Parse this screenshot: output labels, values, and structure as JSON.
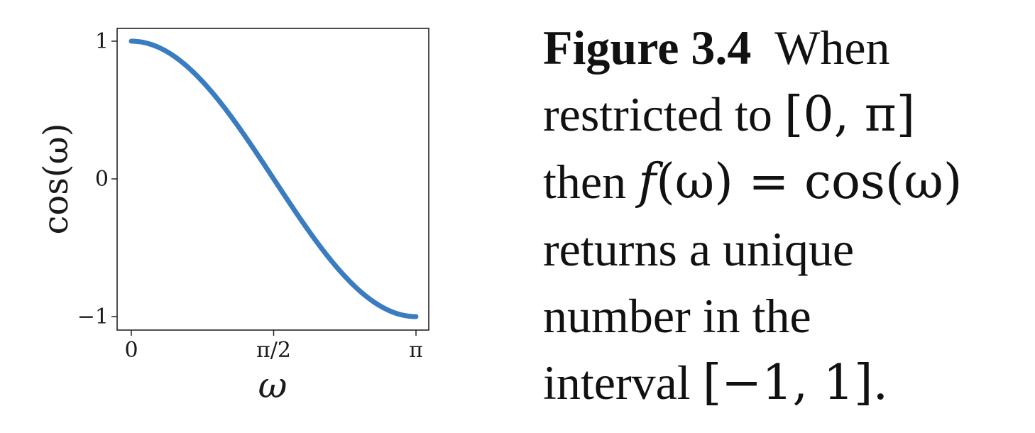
{
  "chart_data": {
    "type": "line",
    "function": "cos",
    "xlabel": "ω",
    "ylabel": "cos(ω)",
    "xlim": [
      0,
      3.14159265
    ],
    "ylim": [
      -1,
      1
    ],
    "xticks": [
      {
        "value": 0,
        "label": "0"
      },
      {
        "value": 1.57079633,
        "label": "π/2"
      },
      {
        "value": 3.14159265,
        "label": "π"
      }
    ],
    "yticks": [
      {
        "value": 1,
        "label": "1"
      },
      {
        "value": 0,
        "label": "0"
      },
      {
        "value": -1,
        "label": "−1"
      }
    ],
    "series": [
      {
        "color": "#3a7cc1",
        "x": [
          0,
          0.2618,
          0.5236,
          0.7854,
          1.0472,
          1.309,
          1.5708,
          1.8326,
          2.0944,
          2.3562,
          2.618,
          2.8798,
          3.1416
        ],
        "y": [
          1,
          0.9659,
          0.866,
          0.7071,
          0.5,
          0.2588,
          0,
          -0.2588,
          -0.5,
          -0.7071,
          -0.866,
          -0.9659,
          -1
        ]
      }
    ],
    "grid": false
  },
  "caption": {
    "label": "Figure 3.4",
    "line1_text": "When",
    "line2_text": "restricted to",
    "line2_math": "[0, π]",
    "line3_text": "then",
    "line3_math_f": "f",
    "line3_math_rest": "(ω) = cos(ω)",
    "line4_text": "returns a unique",
    "line5_text": "number in the",
    "line6_text": "interval",
    "line6_math": "[−1, 1].",
    "colors": {
      "text": "#111111"
    }
  }
}
